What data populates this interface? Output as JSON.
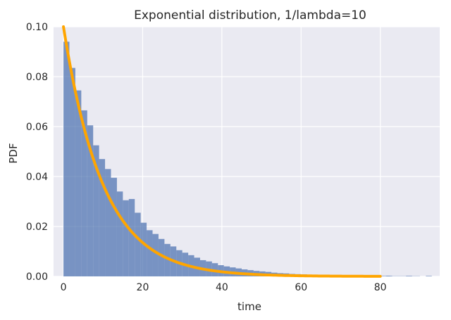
{
  "chart_data": {
    "type": "bar",
    "title": "Exponential distribution, 1/lambda=10",
    "xlabel": "time",
    "ylabel": "PDF",
    "xlim": [
      -2.5,
      95
    ],
    "ylim": [
      0,
      0.1
    ],
    "grid": true,
    "background_color": "#eaeaf2",
    "x_ticks": [
      0,
      20,
      40,
      60,
      80
    ],
    "x_tick_labels": [
      "0",
      "20",
      "40",
      "60",
      "80"
    ],
    "y_ticks": [
      0.0,
      0.02,
      0.04,
      0.06,
      0.08,
      0.1
    ],
    "y_tick_labels": [
      "0.00",
      "0.02",
      "0.04",
      "0.06",
      "0.08",
      "0.10"
    ],
    "series": [
      {
        "kind": "histogram",
        "color": "#4c72b0",
        "bin_width": 1.5,
        "bins_start": 0,
        "values": [
          0.094,
          0.0835,
          0.0745,
          0.0665,
          0.0605,
          0.0525,
          0.047,
          0.043,
          0.0395,
          0.034,
          0.0305,
          0.031,
          0.0255,
          0.0215,
          0.0185,
          0.017,
          0.015,
          0.013,
          0.012,
          0.0105,
          0.0095,
          0.0085,
          0.0075,
          0.0065,
          0.006,
          0.0053,
          0.0045,
          0.004,
          0.0036,
          0.0032,
          0.0028,
          0.0025,
          0.0022,
          0.002,
          0.0018,
          0.0015,
          0.0013,
          0.0012,
          0.001,
          0.0009,
          0.0008,
          0.0007,
          0.0006,
          0.0005,
          0.0005,
          0.0004,
          0.0004,
          0.0003,
          0.0003,
          0.0003,
          0.0002,
          0.0002,
          0.0002,
          0.0002,
          0.0002,
          0.0001,
          0.0001,
          0.0001,
          0.0001,
          0.0001
        ],
        "sparse_tail_bins": [
          {
            "x": 81.5,
            "value": 0.0002
          },
          {
            "x": 86.5,
            "value": 0.0002
          },
          {
            "x": 91.5,
            "value": 0.0002
          }
        ]
      },
      {
        "kind": "line",
        "color": "#ffa500",
        "function": "0.1 * exp(-x/10)",
        "x_range": [
          0,
          80
        ]
      }
    ]
  }
}
